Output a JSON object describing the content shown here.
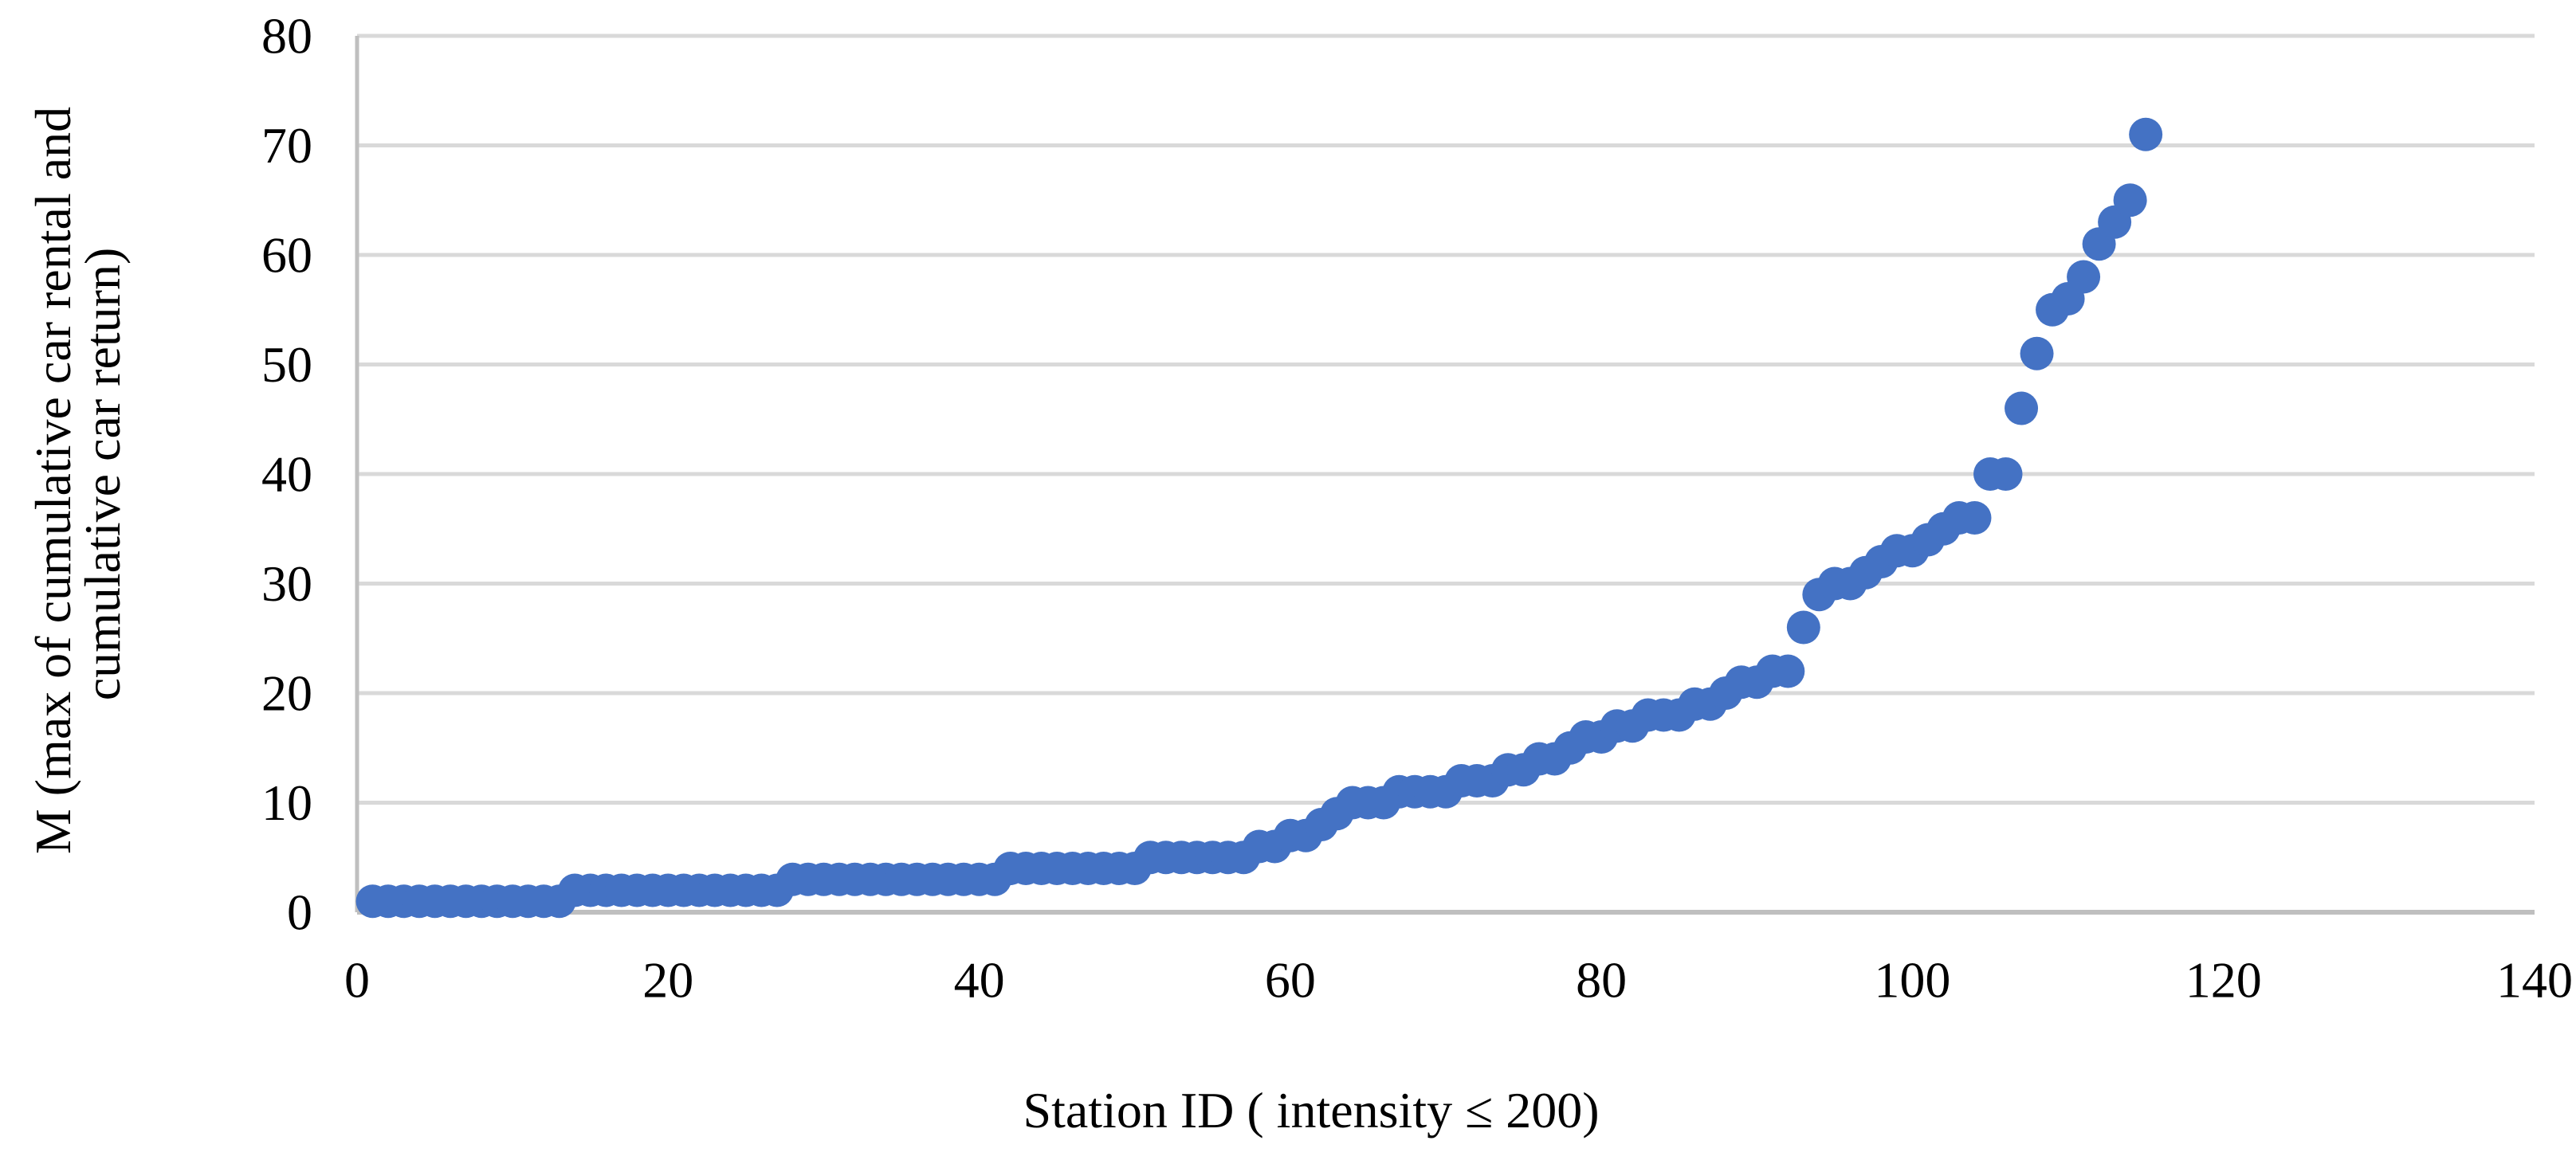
{
  "chart_data": {
    "type": "scatter",
    "title": "",
    "xlabel": "Station ID ( intensity ≤ 200)",
    "ylabel_line1": "M (max of cumulative car rental and",
    "ylabel_line2": "cumulative car return)",
    "xlim": [
      0,
      140
    ],
    "ylim": [
      0,
      80
    ],
    "x_ticks": [
      0,
      20,
      40,
      60,
      80,
      100,
      120,
      140
    ],
    "y_ticks": [
      0,
      10,
      20,
      30,
      40,
      50,
      60,
      70,
      80
    ],
    "grid": "horizontal",
    "legend": "none",
    "marker_color": "#4472C4",
    "gridline_color": "#D9D9D9",
    "axis_line_color": "#BFBFBF",
    "series": [
      {
        "name": "M per station (sorted ascending)",
        "x": [
          1,
          2,
          3,
          4,
          5,
          6,
          7,
          8,
          9,
          10,
          11,
          12,
          13,
          14,
          15,
          16,
          17,
          18,
          19,
          20,
          21,
          22,
          23,
          24,
          25,
          26,
          27,
          28,
          29,
          30,
          31,
          32,
          33,
          34,
          35,
          36,
          37,
          38,
          39,
          40,
          41,
          42,
          43,
          44,
          45,
          46,
          47,
          48,
          49,
          50,
          51,
          52,
          53,
          54,
          55,
          56,
          57,
          58,
          59,
          60,
          61,
          62,
          63,
          64,
          65,
          66,
          67,
          68,
          69,
          70,
          71,
          72,
          73,
          74,
          75,
          76,
          77,
          78,
          79,
          80,
          81,
          82,
          83,
          84,
          85,
          86,
          87,
          88,
          89,
          90,
          91,
          92,
          93,
          94,
          95,
          96,
          97,
          98,
          99,
          100,
          101,
          102,
          103,
          104,
          105,
          106,
          107,
          108,
          109,
          110,
          111,
          112,
          113,
          114,
          115
        ],
        "y": [
          1,
          1,
          1,
          1,
          1,
          1,
          1,
          1,
          1,
          1,
          1,
          1,
          1,
          2,
          2,
          2,
          2,
          2,
          2,
          2,
          2,
          2,
          2,
          2,
          2,
          2,
          2,
          3,
          3,
          3,
          3,
          3,
          3,
          3,
          3,
          3,
          3,
          3,
          3,
          3,
          3,
          4,
          4,
          4,
          4,
          4,
          4,
          4,
          4,
          4,
          5,
          5,
          5,
          5,
          5,
          5,
          5,
          6,
          6,
          7,
          7,
          8,
          9,
          10,
          10,
          10,
          11,
          11,
          11,
          11,
          12,
          12,
          12,
          13,
          13,
          14,
          14,
          15,
          16,
          16,
          17,
          17,
          18,
          18,
          18,
          19,
          19,
          20,
          21,
          21,
          22,
          22,
          26,
          29,
          30,
          30,
          31,
          32,
          33,
          33,
          34,
          35,
          36,
          36,
          40,
          40,
          46,
          51,
          55,
          56,
          58,
          61,
          63,
          65,
          71
        ]
      }
    ]
  }
}
